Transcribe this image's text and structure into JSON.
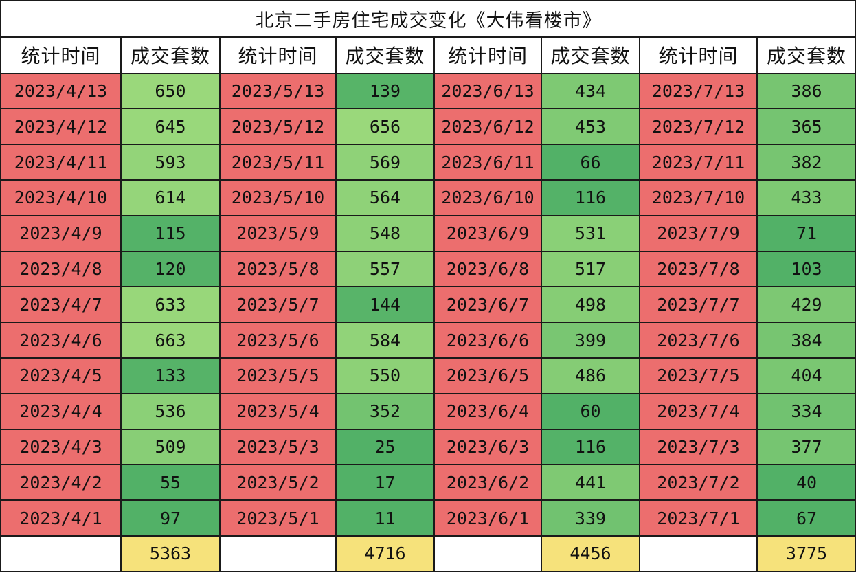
{
  "title": "北京二手房住宅成交变化《大伟看楼市》",
  "headers": {
    "date": "统计时间",
    "count": "成交套数"
  },
  "colors": {
    "date_cell": "#ec6e6e",
    "value_low": "#52b167",
    "value_high": "#9ad87b",
    "total_cell": "#f6e27b",
    "header_cell": "#ffffff",
    "grid": "#1a1a1a"
  },
  "months": [
    {
      "total": "5363",
      "rows": [
        {
          "date": "2023/4/13",
          "count": "650"
        },
        {
          "date": "2023/4/12",
          "count": "645"
        },
        {
          "date": "2023/4/11",
          "count": "593"
        },
        {
          "date": "2023/4/10",
          "count": "614"
        },
        {
          "date": "2023/4/9",
          "count": "115"
        },
        {
          "date": "2023/4/8",
          "count": "120"
        },
        {
          "date": "2023/4/7",
          "count": "633"
        },
        {
          "date": "2023/4/6",
          "count": "663"
        },
        {
          "date": "2023/4/5",
          "count": "133"
        },
        {
          "date": "2023/4/4",
          "count": "536"
        },
        {
          "date": "2023/4/3",
          "count": "509"
        },
        {
          "date": "2023/4/2",
          "count": "55"
        },
        {
          "date": "2023/4/1",
          "count": "97"
        }
      ]
    },
    {
      "total": "4716",
      "rows": [
        {
          "date": "2023/5/13",
          "count": "139"
        },
        {
          "date": "2023/5/12",
          "count": "656"
        },
        {
          "date": "2023/5/11",
          "count": "569"
        },
        {
          "date": "2023/5/10",
          "count": "564"
        },
        {
          "date": "2023/5/9",
          "count": "548"
        },
        {
          "date": "2023/5/8",
          "count": "557"
        },
        {
          "date": "2023/5/7",
          "count": "144"
        },
        {
          "date": "2023/5/6",
          "count": "584"
        },
        {
          "date": "2023/5/5",
          "count": "550"
        },
        {
          "date": "2023/5/4",
          "count": "352"
        },
        {
          "date": "2023/5/3",
          "count": "25"
        },
        {
          "date": "2023/5/2",
          "count": "17"
        },
        {
          "date": "2023/5/1",
          "count": "11"
        }
      ]
    },
    {
      "total": "4456",
      "rows": [
        {
          "date": "2023/6/13",
          "count": "434"
        },
        {
          "date": "2023/6/12",
          "count": "453"
        },
        {
          "date": "2023/6/11",
          "count": "66"
        },
        {
          "date": "2023/6/10",
          "count": "116"
        },
        {
          "date": "2023/6/9",
          "count": "531"
        },
        {
          "date": "2023/6/8",
          "count": "517"
        },
        {
          "date": "2023/6/7",
          "count": "498"
        },
        {
          "date": "2023/6/6",
          "count": "399"
        },
        {
          "date": "2023/6/5",
          "count": "486"
        },
        {
          "date": "2023/6/4",
          "count": "60"
        },
        {
          "date": "2023/6/3",
          "count": "116"
        },
        {
          "date": "2023/6/2",
          "count": "441"
        },
        {
          "date": "2023/6/1",
          "count": "339"
        }
      ]
    },
    {
      "total": "3775",
      "rows": [
        {
          "date": "2023/7/13",
          "count": "386"
        },
        {
          "date": "2023/7/12",
          "count": "365"
        },
        {
          "date": "2023/7/11",
          "count": "382"
        },
        {
          "date": "2023/7/10",
          "count": "433"
        },
        {
          "date": "2023/7/9",
          "count": "71"
        },
        {
          "date": "2023/7/8",
          "count": "103"
        },
        {
          "date": "2023/7/7",
          "count": "429"
        },
        {
          "date": "2023/7/6",
          "count": "384"
        },
        {
          "date": "2023/7/5",
          "count": "404"
        },
        {
          "date": "2023/7/4",
          "count": "334"
        },
        {
          "date": "2023/7/3",
          "count": "377"
        },
        {
          "date": "2023/7/2",
          "count": "40"
        },
        {
          "date": "2023/7/1",
          "count": "67"
        }
      ]
    }
  ]
}
